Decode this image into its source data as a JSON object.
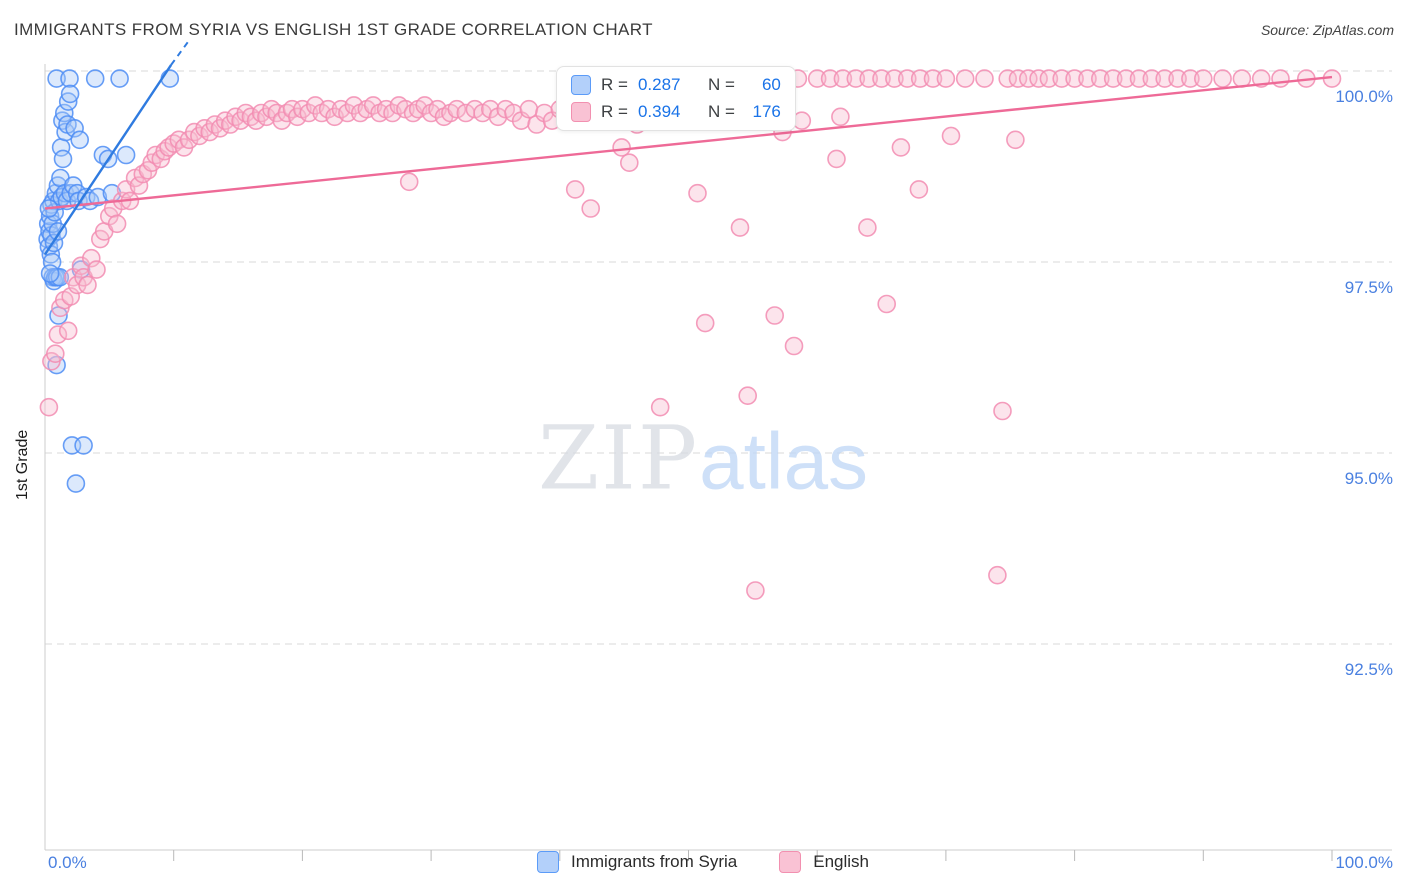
{
  "header": {
    "title": "IMMIGRANTS FROM SYRIA VS ENGLISH 1ST GRADE CORRELATION CHART",
    "source": "Source: ZipAtlas.com"
  },
  "watermark": {
    "zip": "ZIP",
    "atlas": "atlas"
  },
  "axes": {
    "y_label": "1st Grade",
    "y_ticks": [
      "100.0%",
      "97.5%",
      "95.0%",
      "92.5%"
    ],
    "y_tick_values": [
      100.0,
      97.5,
      95.0,
      92.5
    ],
    "x_left_label": "0.0%",
    "x_right_label": "100.0%"
  },
  "legend_box": {
    "series": [
      {
        "r_label": "R =",
        "r_value": "0.287",
        "n_label": "N =",
        "n_value": "60"
      },
      {
        "r_label": "R =",
        "r_value": "0.394",
        "n_label": "N =",
        "n_value": "176"
      }
    ]
  },
  "bottom_legend": {
    "items": [
      {
        "label": "Immigrants from Syria",
        "color": "#b3d0fa"
      },
      {
        "label": "English",
        "color": "#f9c2d4"
      }
    ]
  },
  "chart_data": {
    "type": "scatter",
    "title": "Immigrants from Syria vs English 1st Grade",
    "xlabel": "Immigrants from Syria (%)",
    "ylabel": "1st Grade (%)",
    "xlim": [
      0,
      100
    ],
    "ylim": [
      89.8,
      100.45
    ],
    "y_gridlines": [
      100.0,
      97.5,
      95.0,
      92.5
    ],
    "x_ticks": [
      10,
      20,
      30,
      40,
      50,
      60,
      70,
      80,
      90,
      100
    ],
    "grid": "dashed-horizontal",
    "legend_position": "top-center",
    "series": [
      {
        "name": "Immigrants from Syria",
        "R": 0.287,
        "N": 60,
        "color": "#4e8df5",
        "fill": "#a8c8f8",
        "trend_color": "#2f7be0",
        "point_name": "data-point-syria",
        "trend": {
          "x1": 0,
          "y1": 97.6,
          "x2": 9.8,
          "y2": 100.08
        },
        "trend_dash_ext": {
          "x1": 9.8,
          "y1": 100.08,
          "x2": 11.2,
          "y2": 100.4
        },
        "points": [
          [
            0.2,
            97.8
          ],
          [
            0.25,
            98.0
          ],
          [
            0.3,
            97.7
          ],
          [
            0.35,
            97.9
          ],
          [
            0.4,
            98.1
          ],
          [
            0.45,
            97.6
          ],
          [
            0.5,
            97.85
          ],
          [
            0.5,
            98.25
          ],
          [
            0.55,
            97.5
          ],
          [
            0.6,
            98.0
          ],
          [
            0.6,
            97.3
          ],
          [
            0.65,
            98.3
          ],
          [
            0.7,
            97.75
          ],
          [
            0.7,
            97.25
          ],
          [
            0.75,
            98.15
          ],
          [
            0.8,
            97.3
          ],
          [
            0.85,
            98.4
          ],
          [
            0.9,
            99.9
          ],
          [
            0.9,
            96.15
          ],
          [
            0.95,
            97.3
          ],
          [
            1.0,
            98.5
          ],
          [
            1.0,
            97.9
          ],
          [
            1.1,
            98.3
          ],
          [
            1.15,
            97.3
          ],
          [
            1.2,
            98.6
          ],
          [
            1.25,
            99.0
          ],
          [
            1.3,
            98.35
          ],
          [
            1.35,
            99.35
          ],
          [
            1.4,
            98.85
          ],
          [
            1.5,
            99.45
          ],
          [
            1.55,
            98.4
          ],
          [
            1.6,
            99.2
          ],
          [
            1.7,
            98.3
          ],
          [
            1.75,
            99.3
          ],
          [
            1.8,
            99.6
          ],
          [
            1.9,
            99.9
          ],
          [
            1.95,
            99.7
          ],
          [
            2.0,
            98.4
          ],
          [
            2.1,
            95.1
          ],
          [
            2.2,
            98.5
          ],
          [
            2.3,
            99.25
          ],
          [
            2.4,
            94.6
          ],
          [
            2.5,
            98.4
          ],
          [
            2.6,
            98.3
          ],
          [
            2.7,
            99.1
          ],
          [
            2.8,
            97.4
          ],
          [
            3.0,
            95.1
          ],
          [
            3.2,
            98.35
          ],
          [
            3.5,
            98.3
          ],
          [
            3.9,
            99.9
          ],
          [
            4.1,
            98.35
          ],
          [
            4.5,
            98.9
          ],
          [
            4.9,
            98.85
          ],
          [
            5.2,
            98.4
          ],
          [
            5.8,
            99.9
          ],
          [
            6.3,
            98.9
          ],
          [
            9.7,
            99.9
          ],
          [
            0.4,
            97.35
          ],
          [
            0.3,
            98.2
          ],
          [
            1.05,
            96.8
          ]
        ]
      },
      {
        "name": "English",
        "R": 0.394,
        "N": 176,
        "color": "#f28cb1",
        "fill": "#f8bcd0",
        "trend_color": "#ee6a97",
        "point_name": "data-point-english",
        "trend": {
          "x1": 0,
          "y1": 98.2,
          "x2": 100,
          "y2": 99.92
        },
        "points": [
          [
            0.3,
            95.6
          ],
          [
            0.5,
            96.2
          ],
          [
            0.8,
            96.3
          ],
          [
            1.0,
            96.55
          ],
          [
            1.2,
            96.9
          ],
          [
            1.5,
            97.0
          ],
          [
            1.8,
            96.6
          ],
          [
            2.0,
            97.05
          ],
          [
            2.2,
            97.3
          ],
          [
            2.5,
            97.2
          ],
          [
            2.8,
            97.45
          ],
          [
            3.0,
            97.3
          ],
          [
            3.3,
            97.2
          ],
          [
            3.6,
            97.55
          ],
          [
            4.0,
            97.4
          ],
          [
            4.3,
            97.8
          ],
          [
            4.6,
            97.9
          ],
          [
            5.0,
            98.1
          ],
          [
            5.3,
            98.2
          ],
          [
            5.6,
            98.0
          ],
          [
            6.0,
            98.3
          ],
          [
            6.3,
            98.45
          ],
          [
            6.6,
            98.3
          ],
          [
            7.0,
            98.6
          ],
          [
            7.3,
            98.5
          ],
          [
            7.6,
            98.65
          ],
          [
            8.0,
            98.7
          ],
          [
            8.3,
            98.8
          ],
          [
            8.6,
            98.9
          ],
          [
            9.0,
            98.85
          ],
          [
            9.3,
            98.95
          ],
          [
            9.6,
            99.0
          ],
          [
            10.0,
            99.05
          ],
          [
            10.4,
            99.1
          ],
          [
            10.8,
            99.0
          ],
          [
            11.2,
            99.1
          ],
          [
            11.6,
            99.2
          ],
          [
            12.0,
            99.15
          ],
          [
            12.4,
            99.25
          ],
          [
            12.8,
            99.2
          ],
          [
            13.2,
            99.3
          ],
          [
            13.6,
            99.25
          ],
          [
            14.0,
            99.35
          ],
          [
            14.4,
            99.3
          ],
          [
            14.8,
            99.4
          ],
          [
            15.2,
            99.35
          ],
          [
            15.6,
            99.45
          ],
          [
            16.0,
            99.4
          ],
          [
            16.4,
            99.35
          ],
          [
            16.8,
            99.45
          ],
          [
            17.2,
            99.4
          ],
          [
            17.6,
            99.5
          ],
          [
            18.0,
            99.45
          ],
          [
            18.4,
            99.35
          ],
          [
            18.8,
            99.45
          ],
          [
            19.2,
            99.5
          ],
          [
            19.6,
            99.4
          ],
          [
            20.0,
            99.5
          ],
          [
            20.5,
            99.45
          ],
          [
            21.0,
            99.55
          ],
          [
            21.5,
            99.45
          ],
          [
            22.0,
            99.5
          ],
          [
            22.5,
            99.4
          ],
          [
            23.0,
            99.5
          ],
          [
            23.5,
            99.45
          ],
          [
            24.0,
            99.55
          ],
          [
            24.5,
            99.45
          ],
          [
            25.0,
            99.5
          ],
          [
            25.5,
            99.55
          ],
          [
            26.0,
            99.45
          ],
          [
            26.5,
            99.5
          ],
          [
            27.0,
            99.45
          ],
          [
            27.5,
            99.55
          ],
          [
            28.0,
            99.5
          ],
          [
            28.3,
            98.55
          ],
          [
            28.6,
            99.45
          ],
          [
            29.0,
            99.5
          ],
          [
            29.5,
            99.55
          ],
          [
            30.0,
            99.45
          ],
          [
            30.5,
            99.5
          ],
          [
            31.0,
            99.4
          ],
          [
            31.5,
            99.45
          ],
          [
            32.0,
            99.5
          ],
          [
            32.7,
            99.45
          ],
          [
            33.4,
            99.5
          ],
          [
            34.0,
            99.45
          ],
          [
            34.6,
            99.5
          ],
          [
            35.2,
            99.4
          ],
          [
            35.8,
            99.5
          ],
          [
            36.4,
            99.45
          ],
          [
            37.0,
            99.35
          ],
          [
            37.6,
            99.5
          ],
          [
            38.2,
            99.3
          ],
          [
            38.8,
            99.45
          ],
          [
            39.4,
            99.35
          ],
          [
            40.0,
            99.5
          ],
          [
            40.6,
            99.55
          ],
          [
            41.2,
            98.45
          ],
          [
            41.8,
            99.4
          ],
          [
            42.4,
            98.2
          ],
          [
            43.0,
            99.5
          ],
          [
            43.6,
            99.6
          ],
          [
            44.2,
            99.35
          ],
          [
            44.8,
            99.0
          ],
          [
            45.4,
            98.8
          ],
          [
            46.0,
            99.3
          ],
          [
            46.6,
            99.6
          ],
          [
            47.2,
            99.75
          ],
          [
            47.8,
            99.5
          ],
          [
            48.4,
            99.8
          ],
          [
            49.0,
            99.6
          ],
          [
            49.6,
            99.9
          ],
          [
            50.2,
            99.7
          ],
          [
            50.8,
            99.85
          ],
          [
            51.4,
            99.6
          ],
          [
            52.0,
            99.8
          ],
          [
            47.8,
            95.6
          ],
          [
            51.3,
            96.7
          ],
          [
            55.2,
            93.2
          ],
          [
            54.6,
            95.75
          ],
          [
            56.7,
            96.8
          ],
          [
            58.2,
            96.4
          ],
          [
            65.4,
            96.95
          ],
          [
            74.0,
            93.4
          ],
          [
            74.4,
            95.55
          ],
          [
            63.9,
            97.95
          ],
          [
            67.9,
            98.45
          ],
          [
            54.0,
            97.95
          ],
          [
            50.7,
            98.4
          ],
          [
            57.3,
            99.2
          ],
          [
            58.8,
            99.35
          ],
          [
            61.5,
            98.85
          ],
          [
            70.4,
            99.15
          ],
          [
            75.4,
            99.1
          ],
          [
            61.8,
            99.4
          ],
          [
            66.5,
            99.0
          ],
          [
            52.5,
            99.9
          ],
          [
            54.5,
            99.9
          ],
          [
            56.5,
            99.9
          ],
          [
            58.5,
            99.9
          ],
          [
            60.0,
            99.9
          ],
          [
            61.0,
            99.9
          ],
          [
            62.0,
            99.9
          ],
          [
            63.0,
            99.9
          ],
          [
            64.0,
            99.9
          ],
          [
            65.0,
            99.9
          ],
          [
            66.0,
            99.9
          ],
          [
            67.0,
            99.9
          ],
          [
            68.0,
            99.9
          ],
          [
            69.0,
            99.9
          ],
          [
            70.0,
            99.9
          ],
          [
            71.5,
            99.9
          ],
          [
            73.0,
            99.9
          ],
          [
            74.8,
            99.9
          ],
          [
            75.6,
            99.9
          ],
          [
            76.4,
            99.9
          ],
          [
            77.2,
            99.9
          ],
          [
            78.0,
            99.9
          ],
          [
            79.0,
            99.9
          ],
          [
            80.0,
            99.9
          ],
          [
            81.0,
            99.9
          ],
          [
            82.0,
            99.9
          ],
          [
            83.0,
            99.9
          ],
          [
            84.0,
            99.9
          ],
          [
            85.0,
            99.9
          ],
          [
            86.0,
            99.9
          ],
          [
            87.0,
            99.9
          ],
          [
            88.0,
            99.9
          ],
          [
            89.0,
            99.9
          ],
          [
            90.0,
            99.9
          ],
          [
            91.5,
            99.9
          ],
          [
            93.0,
            99.9
          ],
          [
            94.5,
            99.9
          ],
          [
            96.0,
            99.9
          ],
          [
            98.0,
            99.9
          ],
          [
            100.0,
            99.9
          ]
        ]
      }
    ]
  }
}
